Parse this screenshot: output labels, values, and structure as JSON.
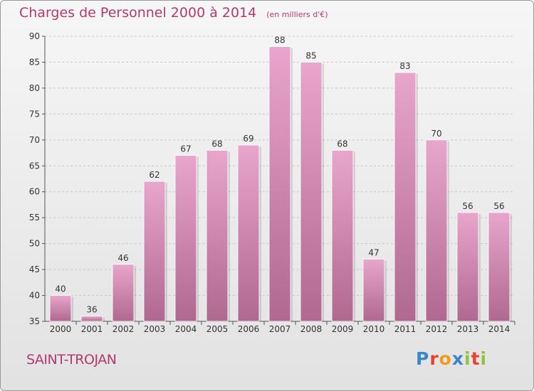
{
  "chart_data": {
    "type": "bar",
    "title": "Charges de Personnel 2000 à 2014",
    "subtitle": "(en milliers d'€)",
    "categories": [
      "2000",
      "2001",
      "2002",
      "2003",
      "2004",
      "2005",
      "2006",
      "2007",
      "2008",
      "2009",
      "2010",
      "2011",
      "2012",
      "2013",
      "2014"
    ],
    "values": [
      40,
      36,
      46,
      62,
      67,
      68,
      69,
      88,
      85,
      68,
      47,
      83,
      70,
      56,
      56
    ],
    "ylim": [
      35,
      90
    ],
    "yticks": [
      35,
      40,
      45,
      50,
      55,
      60,
      65,
      70,
      75,
      80,
      85,
      90
    ],
    "grid": true,
    "bar_color_top": "#e8a6cc",
    "bar_color_bottom": "#b0688f"
  },
  "commune": "SAINT-TROJAN",
  "logo": {
    "letters": [
      {
        "ch": "P",
        "color": "#3b86c6"
      },
      {
        "ch": "r",
        "color": "#e8432f"
      },
      {
        "ch": "o",
        "color": "#f29a1e"
      },
      {
        "ch": "x",
        "color": "#3b86c6"
      },
      {
        "ch": "i",
        "color": "#8cc63f"
      },
      {
        "ch": "t",
        "color": "#e8432f"
      },
      {
        "ch": "i",
        "color": "#8cc63f"
      }
    ]
  }
}
